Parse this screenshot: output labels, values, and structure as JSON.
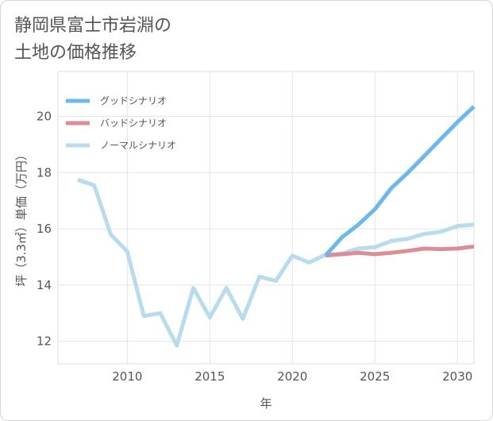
{
  "title_line1": "静岡県富士市岩淵の",
  "title_line2": "土地の価格推移",
  "chart_data": {
    "type": "line",
    "xlabel": "年",
    "ylabel": "坪（3.3㎡）単価（万円）",
    "xlim": [
      2005.8,
      2031
    ],
    "ylim": [
      11.2,
      21.6
    ],
    "xticks": [
      2010,
      2015,
      2020,
      2025,
      2030
    ],
    "yticks": [
      12,
      14,
      16,
      18,
      20
    ],
    "grid": true,
    "legend_position": "top-left",
    "series": [
      {
        "name": "グッドシナリオ",
        "color": "#6bb9ec",
        "x": [
          2022,
          2023,
          2024,
          2025,
          2026,
          2027,
          2028,
          2029,
          2030,
          2031
        ],
        "values": [
          15.05,
          15.7,
          16.15,
          16.7,
          17.45,
          18.0,
          18.6,
          19.2,
          19.8,
          20.35
        ]
      },
      {
        "name": "バッドシナリオ",
        "color": "#dc8e96",
        "x": [
          2022,
          2023,
          2024,
          2025,
          2026,
          2027,
          2028,
          2029,
          2030,
          2031
        ],
        "values": [
          15.05,
          15.1,
          15.15,
          15.1,
          15.15,
          15.22,
          15.3,
          15.28,
          15.3,
          15.37
        ]
      },
      {
        "name": "ノーマルシナリオ",
        "color": "#b8dcec",
        "x": [
          2007,
          2008,
          2009,
          2010,
          2011,
          2012,
          2013,
          2014,
          2015,
          2016,
          2017,
          2018,
          2019,
          2020,
          2021,
          2022,
          2023,
          2024,
          2025,
          2026,
          2027,
          2028,
          2029,
          2030,
          2031
        ],
        "values": [
          17.75,
          17.55,
          15.8,
          15.2,
          12.9,
          13.0,
          11.85,
          13.9,
          12.85,
          13.9,
          12.8,
          14.3,
          14.15,
          15.05,
          14.8,
          15.08,
          15.12,
          15.3,
          15.35,
          15.57,
          15.65,
          15.82,
          15.9,
          16.1,
          16.15
        ]
      }
    ]
  }
}
